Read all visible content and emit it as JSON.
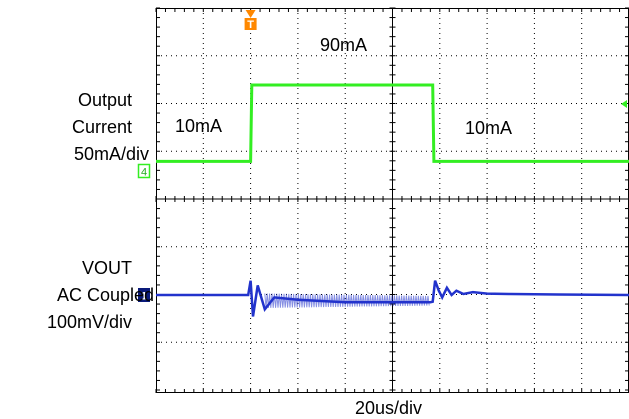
{
  "chart_data": {
    "type": "line",
    "title": "",
    "xlabel": "20us/div",
    "ylabel": "",
    "x_units": "us",
    "x_per_div": 20,
    "x_divisions": 10,
    "xlim": [
      0,
      200
    ],
    "grid": true,
    "colors": {
      "ch4": "#33ee22",
      "ch1": "#2233cc",
      "trigger": "#ff8800",
      "grid": "#000000"
    },
    "channels": [
      {
        "id": "4",
        "name_lines": [
          "Output",
          "Current",
          "50mA/div"
        ],
        "scale": "50mA/div",
        "units": "mA",
        "series": {
          "x": [
            0,
            40,
            40.5,
            117,
            117.5,
            200
          ],
          "y": [
            10,
            10,
            90,
            90,
            10,
            10
          ]
        },
        "annotations": [
          "10mA",
          "90mA",
          "10mA"
        ]
      },
      {
        "id": "1",
        "name_lines": [
          "VOUT",
          "AC Coupled",
          "100mV/div"
        ],
        "scale": "100mV/div",
        "units": "mV",
        "coupling": "AC",
        "series": {
          "x": [
            0,
            39,
            40,
            41,
            43,
            46,
            50,
            60,
            80,
            100,
            116,
            117,
            118,
            119.5,
            121,
            123,
            125,
            127,
            130,
            134,
            140,
            150,
            170,
            200
          ],
          "y": [
            0,
            0,
            30,
            -45,
            20,
            -30,
            -5,
            -10,
            -15,
            -15,
            -15,
            -14,
            30,
            10,
            -5,
            15,
            0,
            9,
            2,
            6,
            3,
            2,
            1,
            0
          ]
        }
      }
    ]
  }
}
